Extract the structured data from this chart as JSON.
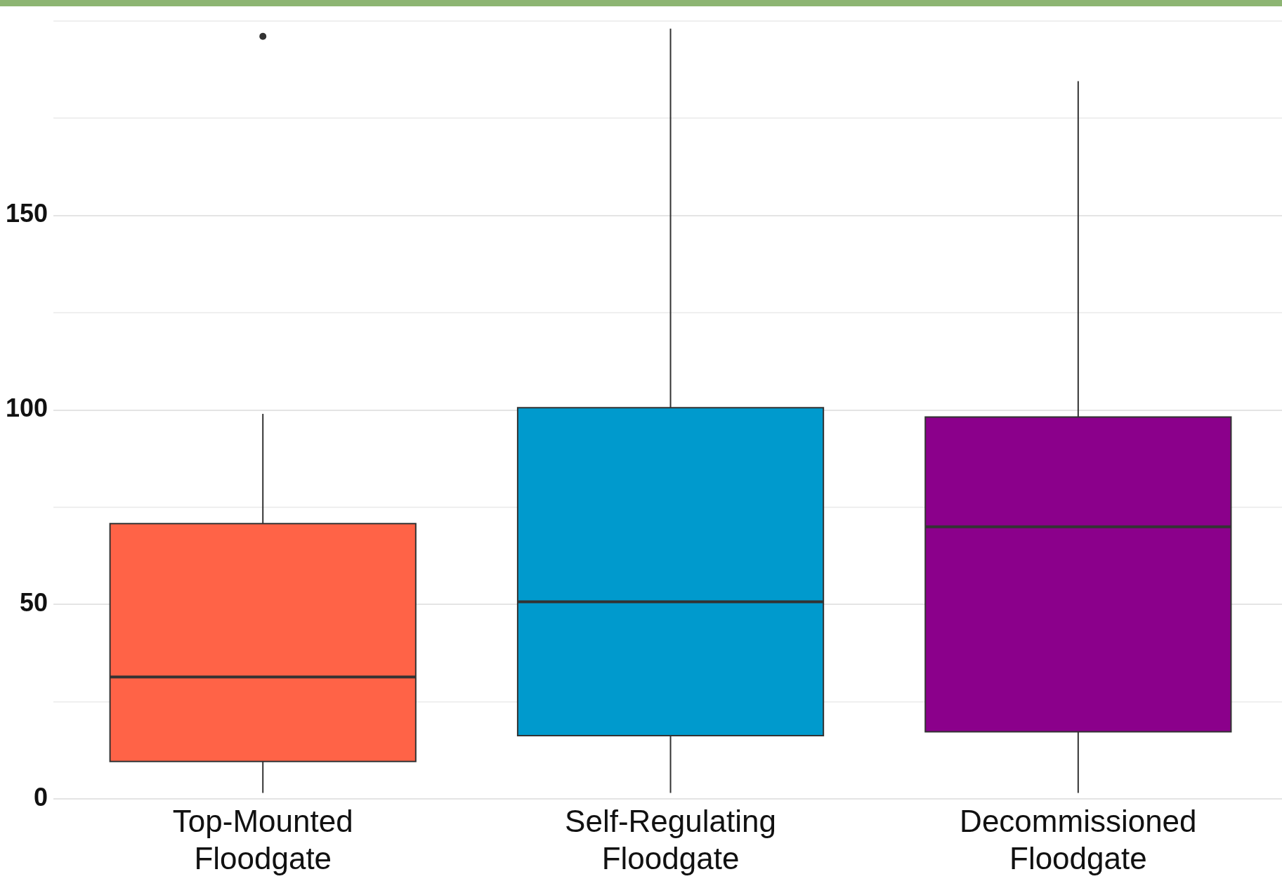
{
  "chart_data": {
    "type": "box",
    "categories": [
      "Top-Mounted Floodgate",
      "Self-Regulating Floodgate",
      "Decommissioned Floodgate"
    ],
    "colors": [
      "#ff6347",
      "#009acd",
      "#8b008b"
    ],
    "boxes": [
      {
        "low": 1.6,
        "q1": 9.7,
        "median": 31.4,
        "q3": 70.8,
        "high": 99,
        "outliers": [
          196
        ]
      },
      {
        "low": 1.6,
        "q1": 16.3,
        "median": 50.7,
        "q3": 100.6,
        "high": 198
      },
      {
        "low": 1.6,
        "q1": 17.3,
        "median": 70,
        "q3": 98.2,
        "high": 184.5
      }
    ],
    "ylim": [
      0,
      200
    ],
    "yticks": [
      0,
      {
        "value": 25,
        "label": null
      },
      50,
      {
        "value": 75,
        "label": null
      },
      100,
      {
        "value": 125,
        "label": null
      },
      150,
      {
        "value": 175,
        "label": null
      },
      {
        "value": 200,
        "label": null
      }
    ],
    "grid": true
  }
}
